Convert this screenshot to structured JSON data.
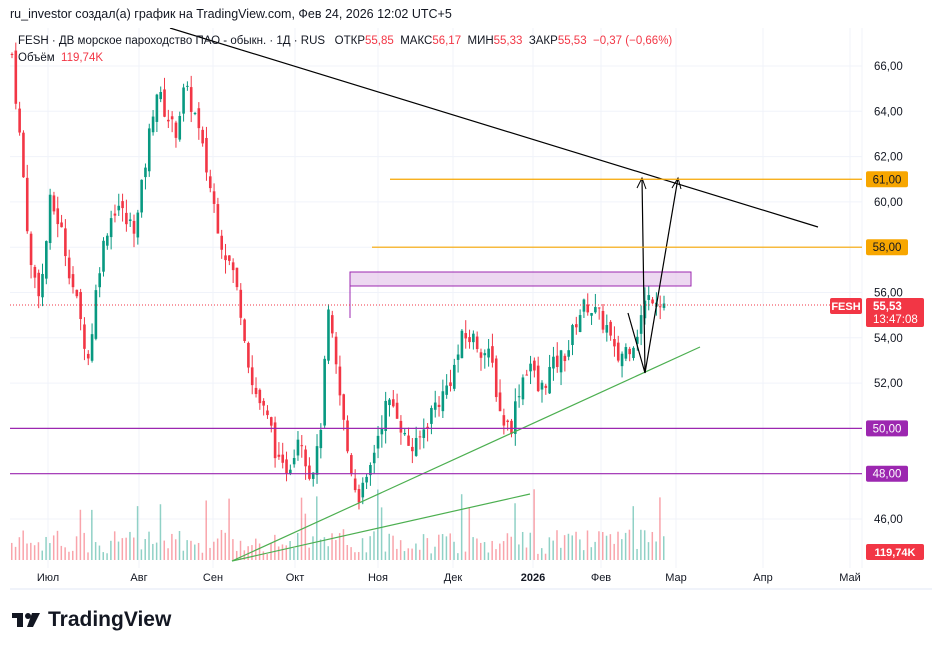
{
  "header": {
    "caption": "ru_investor создал(а) график на TradingView.com, Фев 24, 2026 12:02 UTC+5"
  },
  "legend": {
    "symbol_desc": "FESH · ДВ морское пароходство ПАО - обыкн. · 1Д · RUS",
    "open_label": "ОТКР",
    "open": "55,85",
    "high_label": "МАКС",
    "high": "56,17",
    "low_label": "МИН",
    "low": "55,33",
    "close_label": "ЗАКР",
    "close": "55,53",
    "change": "−0,37 (−0,66%)",
    "volume_label": "Объём",
    "volume": "119,74K"
  },
  "price_tag": {
    "symbol": "FESH",
    "price": "55,53",
    "countdown": "13:47:08",
    "volume_tag": "119,74K"
  },
  "levels": [
    {
      "label": "61,00",
      "color": "#f7a600"
    },
    {
      "label": "58,00",
      "color": "#f7a600"
    },
    {
      "label": "50,00",
      "color": "#9c27b0"
    },
    {
      "label": "48,00",
      "color": "#9c27b0"
    }
  ],
  "brand": {
    "name": "TradingView"
  },
  "colors": {
    "up": "#089981",
    "down": "#f23645"
  },
  "chart_data": {
    "type": "candlestick",
    "title": "FESH · 1Д",
    "y_ticks": [
      "66,00",
      "64,00",
      "62,00",
      "60,00",
      "58,00",
      "56,00",
      "54,00",
      "52,00",
      "50,00",
      "48,00",
      "46,00"
    ],
    "y_values": [
      66,
      64,
      62,
      60,
      58,
      56,
      54,
      52,
      50,
      48,
      46
    ],
    "ylim": [
      45.4,
      67.5
    ],
    "x_ticks": [
      "Июл",
      "Авг",
      "Сен",
      "Окт",
      "Ноя",
      "Дек",
      "2026",
      "Фев",
      "Мар",
      "Апр",
      "Май"
    ],
    "approx_closes": [
      66.5,
      62,
      57,
      56,
      60,
      59,
      57,
      55,
      53,
      57,
      59,
      60,
      59,
      59,
      62,
      65,
      64,
      63,
      65,
      64,
      62,
      60,
      58,
      57,
      55,
      52,
      51,
      50,
      48,
      48.5,
      50,
      48,
      49,
      55,
      52,
      49,
      47,
      47.5,
      49.5,
      51,
      51,
      49.5,
      49,
      50,
      51,
      51.5,
      52.5,
      54,
      54,
      53.5,
      53,
      50.5,
      50,
      52,
      53,
      51.5,
      52.5,
      53,
      53.5,
      55,
      55.5,
      55,
      54.5,
      53,
      53.5,
      54,
      55.5,
      56,
      55.53
    ],
    "levels": [
      61,
      58,
      50,
      48
    ],
    "zone": [
      56.4,
      57.0
    ]
  }
}
